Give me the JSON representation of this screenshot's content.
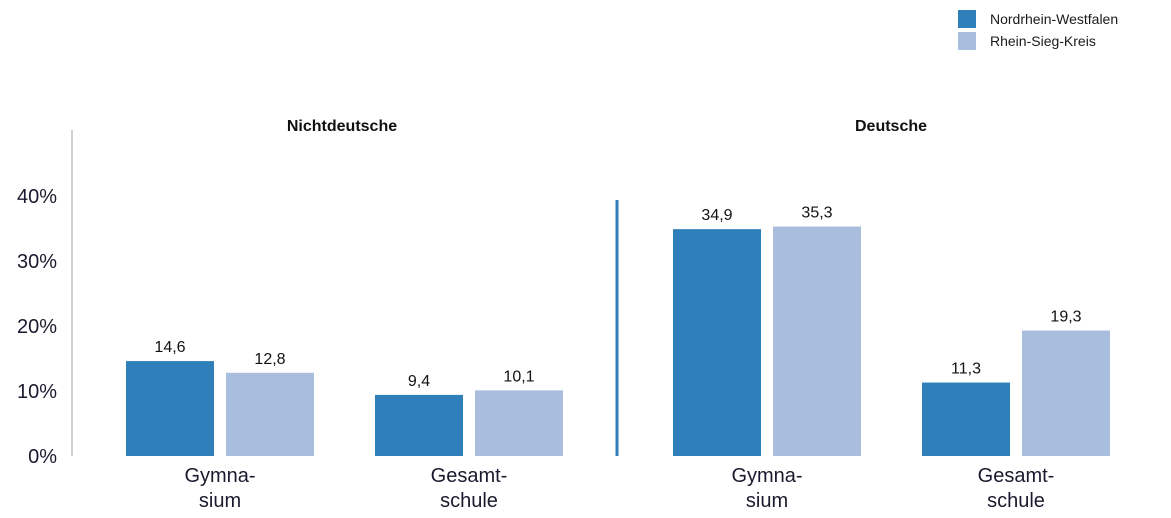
{
  "colors": {
    "nrw": "#2e7fba",
    "rsk": "#a9bedd",
    "axis": "#d0d0d0",
    "divider": "#2e7fba",
    "text": "#1a1a2e"
  },
  "chart_data": {
    "type": "bar",
    "yticks": [
      "0%",
      "10%",
      "20%",
      "30%",
      "40%"
    ],
    "ylim": [
      0,
      50
    ],
    "legend_position": "top-right",
    "groups": [
      {
        "title": "Nichtdeutsche",
        "categories": [
          [
            "Gymna-",
            "sium"
          ],
          [
            "Gesamt-",
            "schule"
          ]
        ]
      },
      {
        "title": "Deutsche",
        "categories": [
          [
            "Gymna-",
            "sium"
          ],
          [
            "Gesamt-",
            "schule"
          ]
        ]
      }
    ],
    "series": [
      {
        "name": "Nordrhein-Westfalen",
        "values": [
          14.6,
          9.4,
          34.9,
          11.3
        ],
        "labels": [
          "14,6",
          "9,4",
          "34,9",
          "11,3"
        ]
      },
      {
        "name": "Rhein-Sieg-Kreis",
        "values": [
          12.8,
          10.1,
          35.3,
          19.3
        ],
        "labels": [
          "12,8",
          "10,1",
          "35,3",
          "19,3"
        ]
      }
    ]
  }
}
